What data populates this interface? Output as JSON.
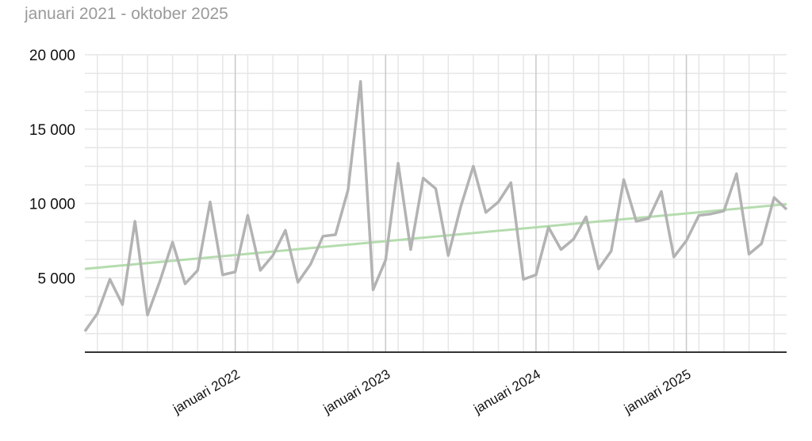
{
  "subtitle": "januari 2021 - oktober 2025",
  "chart_data": {
    "type": "line",
    "title": "",
    "xlabel": "",
    "ylabel": "",
    "x_start": "2021-01",
    "x_end": "2025-10",
    "ylim": [
      0,
      20000
    ],
    "y_ticks": [
      5000,
      10000,
      15000,
      20000
    ],
    "y_tick_labels": [
      "5 000",
      "10 000",
      "15 000",
      "20 000"
    ],
    "x_tick_labels": [
      "januari 2022",
      "januari 2023",
      "januari 2024",
      "januari 2025"
    ],
    "grid": true,
    "colors": {
      "series": "#b3b3b3",
      "trend": "#b5dcae",
      "grid": "#e6e6e6",
      "major_grid": "#c8c8c8",
      "axis": "#333333"
    },
    "series": [
      {
        "values": [
          1400,
          2600,
          4900,
          3200,
          8800,
          2500,
          4800,
          7400,
          4600,
          5500,
          10100,
          5200,
          5400,
          9200,
          5500,
          6500,
          8200,
          4700,
          5900,
          7800,
          7900,
          10900,
          18200,
          4200,
          6200,
          12700,
          6900,
          11700,
          11000,
          6500,
          9800,
          12500,
          9400,
          10100,
          11400,
          4900,
          5200,
          8400,
          6900,
          7600,
          9100,
          5600,
          6800,
          11600,
          8800,
          9000,
          10800,
          6400,
          7500,
          9200,
          9300,
          9500,
          12000,
          6600,
          7300,
          10400,
          9600
        ]
      },
      {
        "type": "trend",
        "values": [
          5600,
          9950
        ]
      }
    ]
  }
}
